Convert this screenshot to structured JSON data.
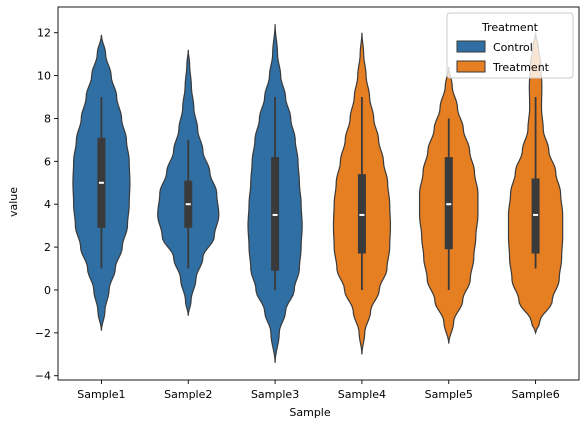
{
  "chart_data": {
    "type": "violin",
    "xlabel": "Sample",
    "ylabel": "value",
    "ylim": [
      -4.2,
      13.2
    ],
    "yticks": [
      -4,
      -2,
      0,
      2,
      4,
      6,
      8,
      10,
      12
    ],
    "categories": [
      "Sample1",
      "Sample2",
      "Sample3",
      "Sample4",
      "Sample5",
      "Sample6"
    ],
    "legend": {
      "title": "Treatment",
      "placement": "top-right",
      "entries": [
        {
          "label": "Control",
          "color": "#2f6fa4"
        },
        {
          "label": "Treatment",
          "color": "#e67e22"
        }
      ]
    },
    "series": [
      {
        "category": "Sample1",
        "group": "Control",
        "min": 1,
        "q1": 2.9,
        "median": 5,
        "q3": 7.1,
        "max": 9,
        "kde_low": -1.9,
        "kde_high": 11.9,
        "profile": [
          [
            -1.9,
            0
          ],
          [
            -1,
            0.1
          ],
          [
            0,
            0.22
          ],
          [
            1,
            0.4
          ],
          [
            2,
            0.6
          ],
          [
            3,
            0.75
          ],
          [
            4,
            0.8
          ],
          [
            5,
            0.82
          ],
          [
            6,
            0.8
          ],
          [
            7,
            0.72
          ],
          [
            8,
            0.58
          ],
          [
            9,
            0.44
          ],
          [
            10,
            0.28
          ],
          [
            11,
            0.12
          ],
          [
            11.9,
            0
          ]
        ]
      },
      {
        "category": "Sample2",
        "group": "Control",
        "min": 1,
        "q1": 2.9,
        "median": 4,
        "q3": 5.1,
        "max": 7,
        "kde_low": -1.2,
        "kde_high": 11.2,
        "profile": [
          [
            -1.2,
            0
          ],
          [
            -0.5,
            0.08
          ],
          [
            0.5,
            0.22
          ],
          [
            1.5,
            0.42
          ],
          [
            2.5,
            0.75
          ],
          [
            3.5,
            0.88
          ],
          [
            4.5,
            0.82
          ],
          [
            5.5,
            0.62
          ],
          [
            6.5,
            0.42
          ],
          [
            7.5,
            0.27
          ],
          [
            8.5,
            0.16
          ],
          [
            9.5,
            0.09
          ],
          [
            10.5,
            0.04
          ],
          [
            11.2,
            0
          ]
        ]
      },
      {
        "category": "Sample3",
        "group": "Control",
        "min": 0,
        "q1": 0.9,
        "median": 3.5,
        "q3": 6.2,
        "max": 9,
        "kde_low": -3.4,
        "kde_high": 12.4,
        "profile": [
          [
            -3.4,
            0
          ],
          [
            -2,
            0.12
          ],
          [
            -1,
            0.3
          ],
          [
            0,
            0.55
          ],
          [
            1,
            0.7
          ],
          [
            2,
            0.75
          ],
          [
            3,
            0.78
          ],
          [
            4,
            0.75
          ],
          [
            5,
            0.7
          ],
          [
            6,
            0.66
          ],
          [
            7,
            0.58
          ],
          [
            8,
            0.45
          ],
          [
            9,
            0.3
          ],
          [
            10,
            0.16
          ],
          [
            11,
            0.07
          ],
          [
            12.4,
            0
          ]
        ]
      },
      {
        "category": "Sample4",
        "group": "Treatment",
        "min": 0,
        "q1": 1.7,
        "median": 3.5,
        "q3": 5.4,
        "max": 9,
        "kde_low": -3.0,
        "kde_high": 12.0,
        "profile": [
          [
            -3,
            0
          ],
          [
            -2,
            0.08
          ],
          [
            -1,
            0.25
          ],
          [
            0,
            0.5
          ],
          [
            1,
            0.72
          ],
          [
            2,
            0.8
          ],
          [
            3,
            0.82
          ],
          [
            4,
            0.8
          ],
          [
            5,
            0.74
          ],
          [
            6,
            0.62
          ],
          [
            7,
            0.48
          ],
          [
            8,
            0.34
          ],
          [
            9,
            0.22
          ],
          [
            10,
            0.12
          ],
          [
            11,
            0.05
          ],
          [
            12,
            0
          ]
        ]
      },
      {
        "category": "Sample5",
        "group": "Treatment",
        "min": 0,
        "q1": 1.9,
        "median": 4,
        "q3": 6.2,
        "max": 8,
        "kde_low": -2.5,
        "kde_high": 10.4,
        "profile": [
          [
            -2.5,
            0
          ],
          [
            -1.5,
            0.14
          ],
          [
            -0.5,
            0.4
          ],
          [
            0.5,
            0.62
          ],
          [
            1.5,
            0.72
          ],
          [
            2.5,
            0.78
          ],
          [
            3.5,
            0.84
          ],
          [
            4.5,
            0.84
          ],
          [
            5.5,
            0.74
          ],
          [
            6.5,
            0.6
          ],
          [
            7.5,
            0.42
          ],
          [
            8.5,
            0.25
          ],
          [
            9.5,
            0.1
          ],
          [
            10.4,
            0
          ]
        ]
      },
      {
        "category": "Sample6",
        "group": "Treatment",
        "min": 1,
        "q1": 1.7,
        "median": 3.5,
        "q3": 5.2,
        "max": 9,
        "kde_low": -2.0,
        "kde_high": 12.0,
        "profile": [
          [
            -2,
            0
          ],
          [
            -1.5,
            0.12
          ],
          [
            -0.5,
            0.48
          ],
          [
            0.5,
            0.68
          ],
          [
            1.5,
            0.75
          ],
          [
            2.5,
            0.78
          ],
          [
            3.5,
            0.78
          ],
          [
            4.5,
            0.72
          ],
          [
            5.5,
            0.58
          ],
          [
            6.5,
            0.38
          ],
          [
            7.5,
            0.22
          ],
          [
            8.5,
            0.17
          ],
          [
            9.5,
            0.18
          ],
          [
            10.5,
            0.15
          ],
          [
            11.3,
            0.08
          ],
          [
            12,
            0
          ]
        ]
      }
    ]
  }
}
